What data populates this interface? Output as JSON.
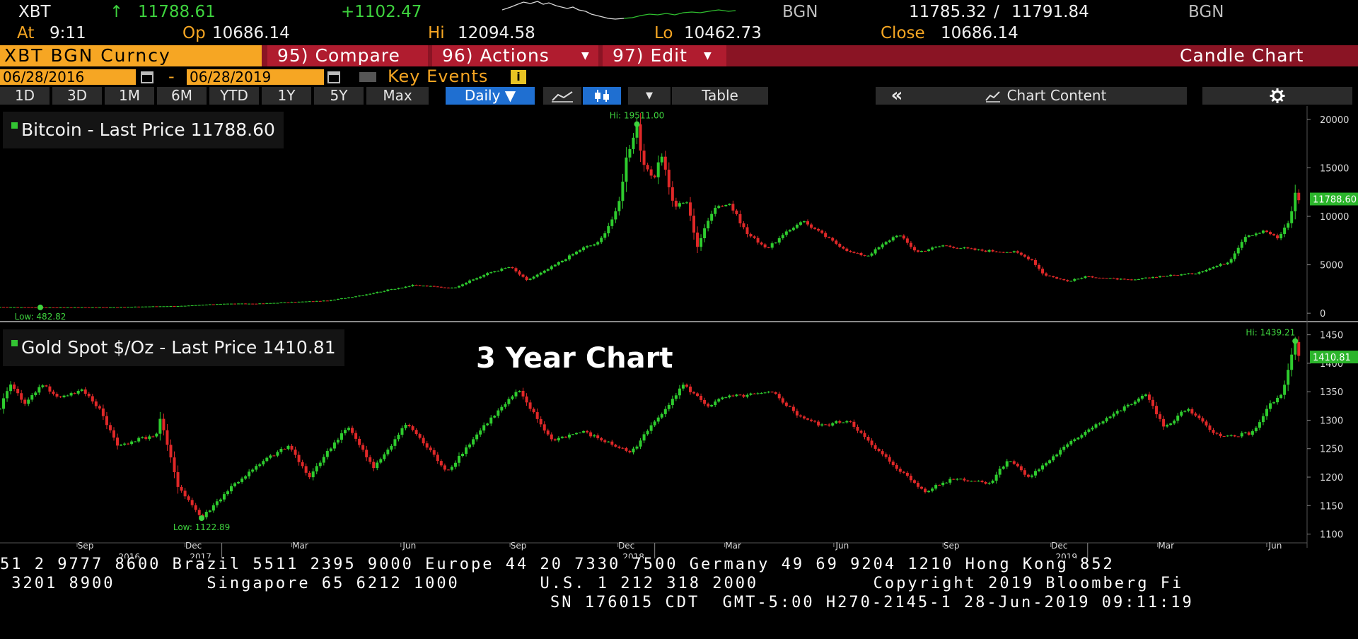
{
  "quote": {
    "ticker": "XBT",
    "arrow": "↑",
    "last": "11788.61",
    "change": "+1102.47",
    "source": "BGN",
    "bid": "11785.32",
    "ask": "11791.84",
    "source2": "BGN",
    "at_label": "At",
    "at_time": "9:11",
    "op_label": "Op",
    "op": "10686.14",
    "hi_label": "Hi",
    "hi": "12094.58",
    "lo_label": "Lo",
    "lo": "10462.73",
    "close_label": "Close",
    "close": "10686.14"
  },
  "menu": {
    "security": "XBT BGN Curncy",
    "compare": "95) Compare",
    "actions": "96) Actions",
    "edit": "97) Edit",
    "chart_type": "Candle Chart",
    "start_date": "06/28/2016",
    "end_date": "06/28/2019",
    "dash": "-",
    "key_events": "Key Events",
    "info": "i"
  },
  "toolbar": {
    "ranges": [
      "1D",
      "3D",
      "1M",
      "6M",
      "YTD",
      "1Y",
      "5Y",
      "Max"
    ],
    "frequency": "Daily ▼",
    "table": "Table",
    "collapse": "«",
    "chart_content": "Chart Content",
    "settings_icon": "gear-icon"
  },
  "chart_data": [
    {
      "type": "line",
      "legend": "Bitcoin - Last Price",
      "last_label": "11788.60",
      "ylim": [
        -500,
        20800
      ],
      "yticks": [
        0,
        5000,
        10000,
        15000,
        20000
      ],
      "hi_label": "Hi: 19511.00",
      "low_label": "Low: 482.82",
      "x": [
        "2016-06-28",
        "2016-08-01",
        "2016-09-01",
        "2016-10-01",
        "2016-11-01",
        "2016-12-01",
        "2017-01-01",
        "2017-02-01",
        "2017-03-01",
        "2017-04-01",
        "2017-05-01",
        "2017-05-25",
        "2017-06-12",
        "2017-07-15",
        "2017-08-15",
        "2017-09-01",
        "2017-09-15",
        "2017-10-01",
        "2017-10-20",
        "2017-11-01",
        "2017-11-15",
        "2017-12-01",
        "2017-12-08",
        "2017-12-17",
        "2017-12-22",
        "2018-01-01",
        "2018-01-06",
        "2018-01-17",
        "2018-01-28",
        "2018-02-06",
        "2018-02-20",
        "2018-03-05",
        "2018-03-20",
        "2018-04-06",
        "2018-05-05",
        "2018-05-30",
        "2018-06-15",
        "2018-06-29",
        "2018-07-25",
        "2018-08-10",
        "2018-09-01",
        "2018-10-01",
        "2018-11-01",
        "2018-11-15",
        "2018-11-25",
        "2018-12-15",
        "2019-01-01",
        "2019-02-07",
        "2019-03-01",
        "2019-04-01",
        "2019-04-30",
        "2019-05-14",
        "2019-05-31",
        "2019-06-10",
        "2019-06-20",
        "2019-06-26",
        "2019-06-28"
      ],
      "values": [
        650,
        600,
        610,
        620,
        700,
        760,
        980,
        990,
        1150,
        1300,
        1900,
        2500,
        2900,
        2600,
        4200,
        4800,
        3400,
        4400,
        5800,
        6700,
        7300,
        10800,
        16000,
        19511,
        15200,
        13800,
        16900,
        11000,
        11500,
        6900,
        11000,
        11300,
        8200,
        6700,
        9600,
        7500,
        6300,
        5900,
        8200,
        6300,
        7000,
        6500,
        6300,
        5500,
        4000,
        3300,
        3800,
        3400,
        3800,
        4100,
        5300,
        8000,
        8500,
        7700,
        9500,
        12900,
        11789
      ]
    },
    {
      "type": "line",
      "legend": "Gold Spot $/Oz - Last Price",
      "last_label": "1410.81",
      "annotation": "3 Year Chart",
      "ylim": [
        1092,
        1457
      ],
      "yticks": [
        1100,
        1150,
        1200,
        1250,
        1300,
        1350,
        1400,
        1450
      ],
      "hi_label": "Hi: 1439.21",
      "low_label": "Low: 1122.89",
      "x": [
        "2016-06-28",
        "2016-07-06",
        "2016-07-20",
        "2016-08-02",
        "2016-08-15",
        "2016-09-06",
        "2016-09-20",
        "2016-10-05",
        "2016-10-20",
        "2016-11-08",
        "2016-11-10",
        "2016-11-25",
        "2016-12-15",
        "2017-01-10",
        "2017-02-10",
        "2017-02-27",
        "2017-03-15",
        "2017-04-17",
        "2017-05-09",
        "2017-06-06",
        "2017-07-10",
        "2017-08-10",
        "2017-09-08",
        "2017-10-06",
        "2017-11-01",
        "2017-12-12",
        "2018-01-25",
        "2018-02-15",
        "2018-03-01",
        "2018-04-11",
        "2018-05-01",
        "2018-05-21",
        "2018-06-14",
        "2018-07-03",
        "2018-08-16",
        "2018-09-10",
        "2018-10-11",
        "2018-10-26",
        "2018-11-13",
        "2018-12-10",
        "2019-01-02",
        "2019-02-20",
        "2019-03-07",
        "2019-03-25",
        "2019-04-23",
        "2019-05-20",
        "2019-06-03",
        "2019-06-14",
        "2019-06-25",
        "2019-06-28"
      ],
      "values": [
        1318,
        1365,
        1328,
        1365,
        1340,
        1352,
        1320,
        1255,
        1265,
        1275,
        1303,
        1185,
        1128,
        1185,
        1235,
        1255,
        1200,
        1290,
        1215,
        1295,
        1210,
        1290,
        1352,
        1265,
        1280,
        1243,
        1362,
        1325,
        1340,
        1348,
        1310,
        1290,
        1300,
        1255,
        1175,
        1198,
        1190,
        1232,
        1200,
        1248,
        1285,
        1345,
        1285,
        1320,
        1270,
        1278,
        1325,
        1345,
        1439,
        1411
      ]
    }
  ],
  "x_axis": {
    "months": [
      "Sep",
      "Dec",
      "Mar",
      "Jun",
      "Sep",
      "Dec",
      "Mar",
      "Jun",
      "Sep",
      "Dec",
      "Mar",
      "Jun"
    ],
    "years": [
      "2016",
      "2017",
      "2018",
      "2019"
    ]
  },
  "footer": {
    "line1": "51 2 9777 8600 Brazil 5511 2395 9000 Europe 44 20 7330 7500 Germany 49 69 9204 1210 Hong Kong 852",
    "line2": " 3201 8900        Singapore 65 6212 1000       U.S. 1 212 318 2000          Copyright 2019 Bloomberg Fi",
    "line3": "SN 176015 CDT  GMT-5:00 H270-2145-1 28-Jun-2019 09:11:19"
  }
}
